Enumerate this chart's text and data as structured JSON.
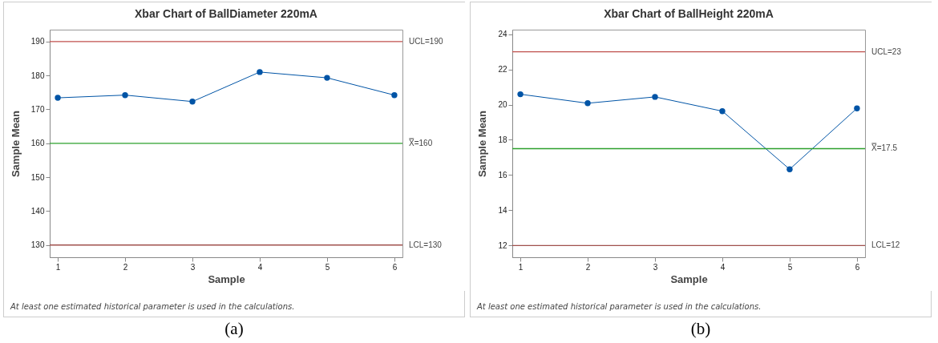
{
  "chart_data": [
    {
      "type": "line",
      "title": "Xbar Chart of BallDiameter 220mA",
      "xlabel": "Sample",
      "ylabel": "Sample Mean",
      "x": [
        1,
        2,
        3,
        4,
        5,
        6
      ],
      "xlim": [
        0.88,
        6.12
      ],
      "xticks": [
        1,
        2,
        3,
        4,
        5,
        6
      ],
      "ylim": [
        126.4,
        193.5
      ],
      "yticks": [
        130,
        140,
        150,
        160,
        170,
        180,
        190
      ],
      "series": [
        {
          "color": "#0054a6",
          "values": [
            173.4,
            174.2,
            172.3,
            181.0,
            179.3,
            174.2
          ]
        }
      ],
      "marker": "circle",
      "grid": false,
      "ref_lines": [
        {
          "axis": "y",
          "value": 190,
          "label": "UCL=190",
          "color": "#c0504d"
        },
        {
          "axis": "y",
          "value": 160,
          "label": "X̿=160",
          "color": "#2ca02c"
        },
        {
          "axis": "y",
          "value": 130,
          "label": "LCL=130",
          "color": "#a0504d"
        }
      ],
      "annotations": [
        "At least one estimated historical parameter is used in the calculations.",
        "(a)"
      ]
    },
    {
      "type": "line",
      "title": "Xbar Chart of BallHeight 220mA",
      "xlabel": "Sample",
      "ylabel": "Sample Mean",
      "x": [
        1,
        2,
        3,
        4,
        5,
        6
      ],
      "xlim": [
        0.88,
        6.12
      ],
      "xticks": [
        1,
        2,
        3,
        4,
        5,
        6
      ],
      "ylim": [
        11.33,
        24.26
      ],
      "yticks": [
        12,
        14,
        16,
        18,
        20,
        22,
        24
      ],
      "series": [
        {
          "color": "#0054a6",
          "values": [
            20.59,
            20.08,
            20.44,
            19.63,
            16.33,
            19.79
          ]
        }
      ],
      "marker": "circle",
      "grid": false,
      "ref_lines": [
        {
          "axis": "y",
          "value": 23,
          "label": "UCL=23",
          "color": "#c0504d"
        },
        {
          "axis": "y",
          "value": 17.5,
          "label": "X̿=17.5",
          "color": "#2ca02c"
        },
        {
          "axis": "y",
          "value": 12,
          "label": "LCL=12",
          "color": "#a0504d"
        }
      ],
      "annotations": [
        "At least one estimated historical parameter is used in the calculations.",
        "(b)"
      ]
    }
  ]
}
